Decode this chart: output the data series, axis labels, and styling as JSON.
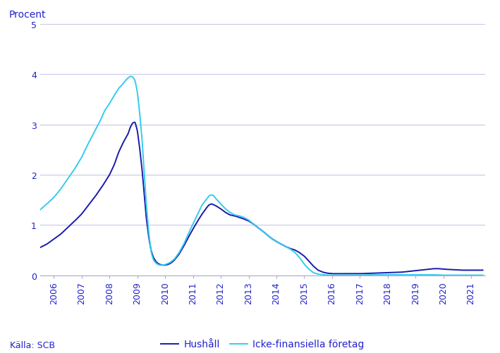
{
  "ylabel": "Procent",
  "ylim": [
    0,
    5
  ],
  "yticks": [
    0,
    1,
    2,
    3,
    4,
    5
  ],
  "legend_labels": [
    "Hushåll",
    "Icke-finansiella företag"
  ],
  "hushall_color": "#1a1aaa",
  "foretag_color": "#33ccee",
  "background_color": "#ffffff",
  "grid_color": "#c8c8e8",
  "text_color": "#2222cc",
  "source_text": "Källa: SCB",
  "xtick_labels": [
    "2006",
    "2007",
    "2008",
    "2009",
    "2010",
    "2011",
    "2012",
    "2013",
    "2014",
    "2015",
    "2016",
    "2017",
    "2018",
    "2019",
    "2020",
    "2021"
  ],
  "hushall_points": [
    [
      2005.5,
      0.55
    ],
    [
      2005.75,
      0.62
    ],
    [
      2006.0,
      0.72
    ],
    [
      2006.25,
      0.82
    ],
    [
      2006.5,
      0.95
    ],
    [
      2006.75,
      1.08
    ],
    [
      2007.0,
      1.22
    ],
    [
      2007.25,
      1.4
    ],
    [
      2007.5,
      1.58
    ],
    [
      2007.75,
      1.78
    ],
    [
      2008.0,
      2.0
    ],
    [
      2008.17,
      2.2
    ],
    [
      2008.33,
      2.45
    ],
    [
      2008.5,
      2.65
    ],
    [
      2008.67,
      2.82
    ],
    [
      2008.75,
      2.95
    ],
    [
      2008.83,
      3.03
    ],
    [
      2008.917,
      3.05
    ],
    [
      2009.0,
      2.88
    ],
    [
      2009.08,
      2.55
    ],
    [
      2009.17,
      2.1
    ],
    [
      2009.25,
      1.6
    ],
    [
      2009.33,
      1.1
    ],
    [
      2009.42,
      0.72
    ],
    [
      2009.5,
      0.48
    ],
    [
      2009.58,
      0.35
    ],
    [
      2009.67,
      0.27
    ],
    [
      2009.75,
      0.23
    ],
    [
      2009.83,
      0.21
    ],
    [
      2009.917,
      0.2
    ],
    [
      2010.0,
      0.2
    ],
    [
      2010.08,
      0.21
    ],
    [
      2010.17,
      0.23
    ],
    [
      2010.25,
      0.26
    ],
    [
      2010.33,
      0.3
    ],
    [
      2010.5,
      0.42
    ],
    [
      2010.67,
      0.58
    ],
    [
      2010.83,
      0.75
    ],
    [
      2011.0,
      0.92
    ],
    [
      2011.17,
      1.08
    ],
    [
      2011.33,
      1.22
    ],
    [
      2011.5,
      1.35
    ],
    [
      2011.58,
      1.4
    ],
    [
      2011.67,
      1.42
    ],
    [
      2011.75,
      1.4
    ],
    [
      2011.83,
      1.38
    ],
    [
      2012.0,
      1.32
    ],
    [
      2012.17,
      1.25
    ],
    [
      2012.33,
      1.2
    ],
    [
      2012.5,
      1.18
    ],
    [
      2012.67,
      1.15
    ],
    [
      2012.83,
      1.12
    ],
    [
      2013.0,
      1.08
    ],
    [
      2013.17,
      1.02
    ],
    [
      2013.33,
      0.95
    ],
    [
      2013.5,
      0.88
    ],
    [
      2013.67,
      0.8
    ],
    [
      2013.83,
      0.73
    ],
    [
      2014.0,
      0.67
    ],
    [
      2014.17,
      0.62
    ],
    [
      2014.33,
      0.57
    ],
    [
      2014.5,
      0.53
    ],
    [
      2014.67,
      0.5
    ],
    [
      2014.83,
      0.45
    ],
    [
      2015.0,
      0.38
    ],
    [
      2015.17,
      0.28
    ],
    [
      2015.33,
      0.18
    ],
    [
      2015.5,
      0.1
    ],
    [
      2015.67,
      0.06
    ],
    [
      2015.83,
      0.04
    ],
    [
      2016.0,
      0.03
    ],
    [
      2016.5,
      0.03
    ],
    [
      2017.0,
      0.03
    ],
    [
      2017.5,
      0.04
    ],
    [
      2018.0,
      0.05
    ],
    [
      2018.5,
      0.06
    ],
    [
      2018.83,
      0.08
    ],
    [
      2019.0,
      0.09
    ],
    [
      2019.33,
      0.11
    ],
    [
      2019.5,
      0.12
    ],
    [
      2019.67,
      0.13
    ],
    [
      2019.83,
      0.13
    ],
    [
      2020.0,
      0.12
    ],
    [
      2020.33,
      0.11
    ],
    [
      2020.67,
      0.1
    ],
    [
      2021.0,
      0.1
    ],
    [
      2021.42,
      0.1
    ]
  ],
  "foretag_points": [
    [
      2005.5,
      1.3
    ],
    [
      2005.75,
      1.42
    ],
    [
      2006.0,
      1.55
    ],
    [
      2006.25,
      1.72
    ],
    [
      2006.5,
      1.92
    ],
    [
      2006.75,
      2.12
    ],
    [
      2007.0,
      2.35
    ],
    [
      2007.17,
      2.55
    ],
    [
      2007.33,
      2.72
    ],
    [
      2007.5,
      2.9
    ],
    [
      2007.67,
      3.08
    ],
    [
      2007.75,
      3.18
    ],
    [
      2007.83,
      3.28
    ],
    [
      2007.917,
      3.35
    ],
    [
      2008.0,
      3.42
    ],
    [
      2008.17,
      3.58
    ],
    [
      2008.33,
      3.72
    ],
    [
      2008.5,
      3.82
    ],
    [
      2008.58,
      3.88
    ],
    [
      2008.67,
      3.93
    ],
    [
      2008.75,
      3.96
    ],
    [
      2008.83,
      3.95
    ],
    [
      2008.917,
      3.88
    ],
    [
      2009.0,
      3.65
    ],
    [
      2009.08,
      3.25
    ],
    [
      2009.17,
      2.7
    ],
    [
      2009.25,
      2.0
    ],
    [
      2009.33,
      1.35
    ],
    [
      2009.42,
      0.8
    ],
    [
      2009.5,
      0.45
    ],
    [
      2009.58,
      0.3
    ],
    [
      2009.67,
      0.24
    ],
    [
      2009.75,
      0.21
    ],
    [
      2009.83,
      0.2
    ],
    [
      2009.917,
      0.2
    ],
    [
      2010.0,
      0.21
    ],
    [
      2010.17,
      0.25
    ],
    [
      2010.33,
      0.32
    ],
    [
      2010.5,
      0.45
    ],
    [
      2010.67,
      0.62
    ],
    [
      2010.83,
      0.82
    ],
    [
      2011.0,
      1.02
    ],
    [
      2011.17,
      1.22
    ],
    [
      2011.33,
      1.4
    ],
    [
      2011.5,
      1.52
    ],
    [
      2011.58,
      1.58
    ],
    [
      2011.67,
      1.6
    ],
    [
      2011.75,
      1.58
    ],
    [
      2011.83,
      1.52
    ],
    [
      2012.0,
      1.42
    ],
    [
      2012.17,
      1.32
    ],
    [
      2012.33,
      1.25
    ],
    [
      2012.5,
      1.2
    ],
    [
      2012.67,
      1.18
    ],
    [
      2012.83,
      1.15
    ],
    [
      2013.0,
      1.1
    ],
    [
      2013.17,
      1.02
    ],
    [
      2013.33,
      0.95
    ],
    [
      2013.5,
      0.88
    ],
    [
      2013.67,
      0.8
    ],
    [
      2013.83,
      0.73
    ],
    [
      2014.0,
      0.67
    ],
    [
      2014.17,
      0.62
    ],
    [
      2014.33,
      0.57
    ],
    [
      2014.5,
      0.52
    ],
    [
      2014.67,
      0.45
    ],
    [
      2014.83,
      0.35
    ],
    [
      2015.0,
      0.22
    ],
    [
      2015.17,
      0.12
    ],
    [
      2015.33,
      0.05
    ],
    [
      2015.5,
      0.02
    ],
    [
      2015.67,
      0.01
    ],
    [
      2015.83,
      0.0
    ],
    [
      2016.0,
      0.0
    ],
    [
      2016.5,
      0.0
    ],
    [
      2017.0,
      0.0
    ],
    [
      2017.5,
      0.01
    ],
    [
      2018.0,
      0.01
    ],
    [
      2018.5,
      0.01
    ],
    [
      2019.0,
      0.01
    ],
    [
      2019.5,
      0.01
    ],
    [
      2020.0,
      0.0
    ],
    [
      2020.5,
      0.0
    ],
    [
      2021.0,
      0.0
    ],
    [
      2021.42,
      0.0
    ]
  ]
}
